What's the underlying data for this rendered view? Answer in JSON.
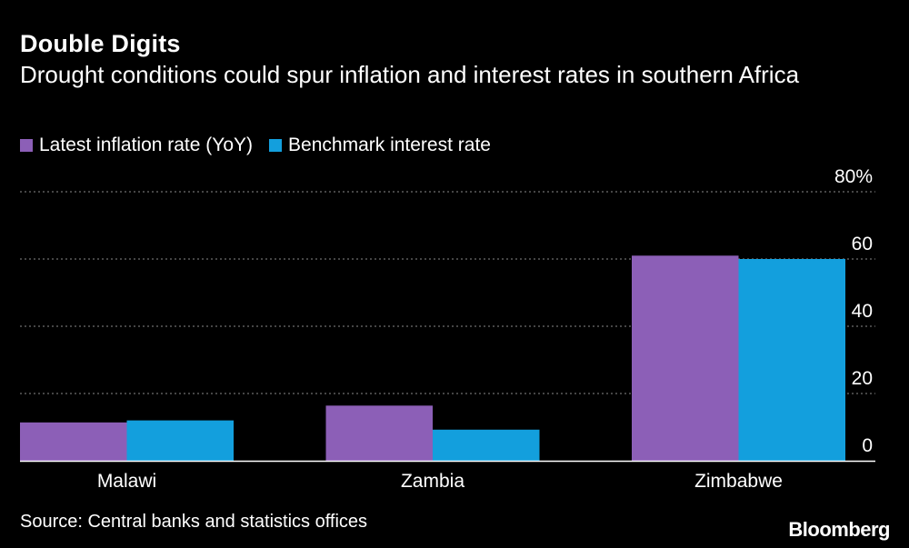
{
  "chart_data": {
    "type": "bar",
    "title": "Double Digits",
    "subtitle": "Drought conditions could spur inflation and interest rates in southern Africa",
    "categories": [
      "Malawi",
      "Zambia",
      "Zimbabwe"
    ],
    "series": [
      {
        "name": "Latest inflation rate (YoY)",
        "color": "#8c5fb7",
        "values": [
          11.4,
          16.4,
          61.0
        ]
      },
      {
        "name": "Benchmark interest rate",
        "color": "#139fdd",
        "values": [
          12.0,
          9.25,
          60.0
        ]
      }
    ],
    "yticks": [
      "0",
      "20",
      "40",
      "60",
      "80%"
    ],
    "ytick_values": [
      0,
      20,
      40,
      60,
      80
    ],
    "ylim": [
      0,
      80
    ],
    "grid": true,
    "legend": "top-left"
  },
  "footer": {
    "source": "Source: Central banks and statistics offices",
    "brand": "Bloomberg"
  }
}
